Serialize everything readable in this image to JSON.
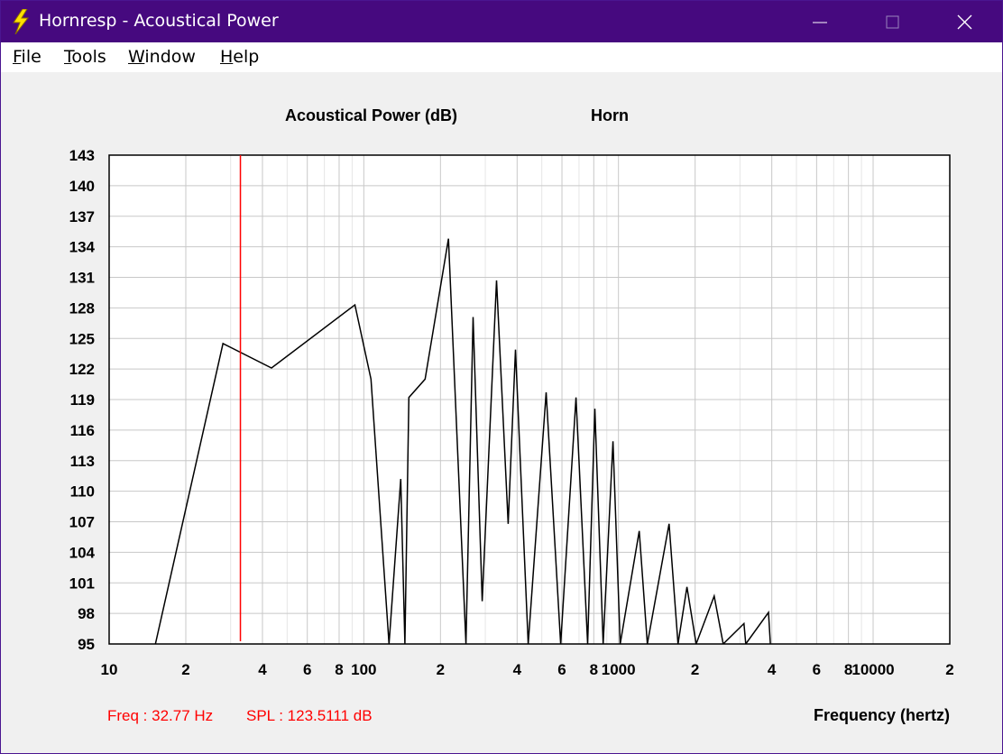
{
  "window": {
    "title": "Hornresp - Acoustical Power"
  },
  "menu": [
    "File",
    "Tools",
    "Window",
    "Help"
  ],
  "chart_data": {
    "type": "line",
    "title": "Acoustical Power (dB)",
    "subtitle": "Horn",
    "xlabel": "Frequency (hertz)",
    "xscale": "log",
    "grid": true,
    "xlim": [
      10,
      20000
    ],
    "ylim": [
      95,
      143
    ],
    "yticks": [
      95,
      98,
      101,
      104,
      107,
      110,
      113,
      116,
      119,
      122,
      125,
      128,
      131,
      134,
      137,
      140,
      143
    ],
    "xticks": [
      10,
      {
        "value": 20,
        "label": "2"
      },
      {
        "value": 40,
        "label": "4"
      },
      {
        "value": 60,
        "label": "6"
      },
      {
        "value": 80,
        "label": "8"
      },
      100,
      {
        "value": 200,
        "label": "2"
      },
      {
        "value": 400,
        "label": "4"
      },
      {
        "value": 600,
        "label": "6"
      },
      {
        "value": 800,
        "label": "8"
      },
      1000,
      {
        "value": 2000,
        "label": "2"
      },
      {
        "value": 4000,
        "label": "4"
      },
      {
        "value": 6000,
        "label": "6"
      },
      {
        "value": 8000,
        "label": "8"
      },
      10000,
      {
        "value": 20000,
        "label": "2"
      }
    ],
    "xminor_ticks": [
      30,
      50,
      70,
      90,
      300,
      500,
      700,
      900,
      3000,
      5000,
      7000,
      9000
    ],
    "x": [
      15.2,
      28.0,
      43.4,
      92.3,
      106.7,
      125.6,
      139.7,
      145,
      150.3,
      174,
      215,
      251.8,
      268.7,
      291.6,
      332,
      369,
      394,
      442,
      520,
      593,
      681,
      757,
      808,
      871,
      952,
      1016,
      1207,
      1298,
      1580,
      1714,
      1858,
      2018,
      2377,
      2578,
      3110,
      3160,
      3882,
      3950
    ],
    "series": [
      {
        "color": "#000000",
        "values": [
          95,
          124.5,
          122.1,
          128.3,
          121,
          95,
          111.2,
          95,
          119.2,
          121,
          134.8,
          95,
          127.1,
          99.2,
          130.7,
          106.8,
          123.9,
          95,
          119.7,
          95,
          119.2,
          95,
          118.1,
          95,
          114.9,
          95,
          106.1,
          95,
          106.8,
          95,
          100.6,
          95,
          99.7,
          95,
          97,
          95,
          98.1,
          95
        ]
      }
    ],
    "cursor_x": 32.77,
    "cursor_color": "#ff0000",
    "readouts": [
      "Freq : 32.77 Hz",
      "SPL : 123.5111 dB"
    ]
  }
}
